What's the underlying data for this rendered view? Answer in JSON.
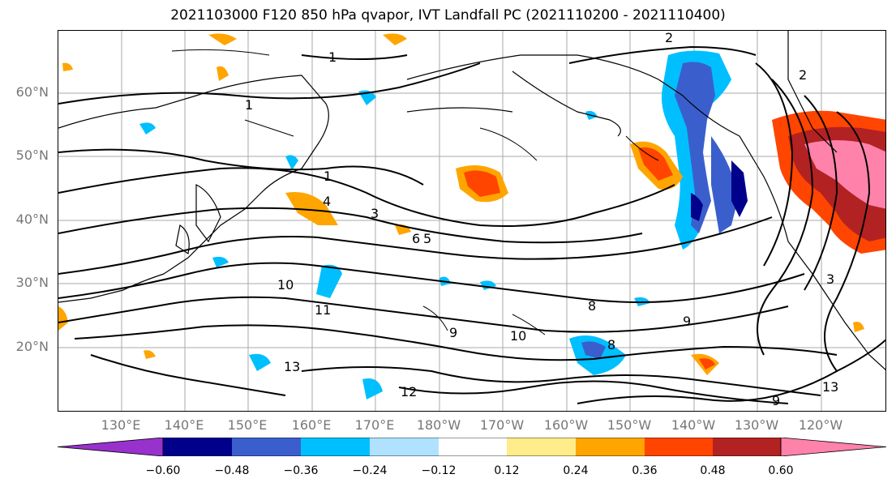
{
  "title": "2021103000 F120 850 hPa qvapor, IVT Landfall PC (2021110200 - 2021110400)",
  "lat_labels": [
    "60°N",
    "50°N",
    "40°N",
    "30°N",
    "20°N"
  ],
  "lon_labels": [
    "130°E",
    "140°E",
    "150°E",
    "160°E",
    "170°E",
    "180°W",
    "170°W",
    "160°W",
    "150°W",
    "140°W",
    "130°W",
    "120°W"
  ],
  "contour_labels": [
    "1",
    "1",
    "1",
    "2",
    "2",
    "3",
    "3",
    "4",
    "5",
    "6",
    "8",
    "8",
    "9",
    "9",
    "10",
    "10",
    "11",
    "12",
    "13",
    "13",
    "9"
  ],
  "colorbar": {
    "ticks": [
      "−0.60",
      "−0.48",
      "−0.36",
      "−0.24",
      "−0.12",
      "0.12",
      "0.24",
      "0.36",
      "0.48",
      "0.60"
    ],
    "colors": [
      "#9932cc",
      "#00008b",
      "#3a5fcd",
      "#00bfff",
      "#b0e2ff",
      "#ffffff",
      "#ffec8b",
      "#ffa500",
      "#ff4500",
      "#b22222",
      "#ff82ab"
    ]
  }
}
